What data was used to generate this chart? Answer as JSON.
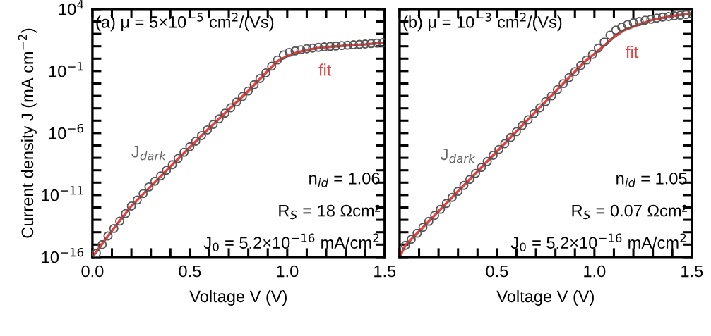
{
  "chart_data": [
    {
      "type": "line",
      "title": "(a) μ = 5×10$^{−5}$ cm$^{2}$/(Vs)",
      "xlabel": "Voltage V (V)",
      "ylabel": "Current density J (mA cm$^{−2}$)",
      "log": "y",
      "xlim": [
        0,
        1.5
      ],
      "ylim": [
        1e-16,
        10000
      ],
      "xticks": [
        {
          "value": 0,
          "label": "0.0"
        },
        {
          "value": 0.1,
          "label": null
        },
        {
          "value": 0.2,
          "label": null
        },
        {
          "value": 0.3,
          "label": null
        },
        {
          "value": 0.4,
          "label": null
        },
        {
          "value": 0.5,
          "label": "0.5"
        },
        {
          "value": 0.6,
          "label": null
        },
        {
          "value": 0.7,
          "label": null
        },
        {
          "value": 0.8,
          "label": null
        },
        {
          "value": 0.9,
          "label": null
        },
        {
          "value": 1.0,
          "label": "1.0"
        },
        {
          "value": 1.1,
          "label": null
        },
        {
          "value": 1.2,
          "label": null
        },
        {
          "value": 1.3,
          "label": null
        },
        {
          "value": 1.4,
          "label": null
        },
        {
          "value": 1.5,
          "label": "1.5"
        }
      ],
      "yticks": [
        {
          "value": 1e-16,
          "label": "10$^{−16}$"
        },
        {
          "value": 1e-15,
          "label": null
        },
        {
          "value": 1e-14,
          "label": null
        },
        {
          "value": 1e-13,
          "label": null
        },
        {
          "value": 1e-12,
          "label": null
        },
        {
          "value": 1e-11,
          "label": "10$^{−11}$"
        },
        {
          "value": 1e-10,
          "label": null
        },
        {
          "value": 1e-09,
          "label": null
        },
        {
          "value": 1e-08,
          "label": null
        },
        {
          "value": 1e-07,
          "label": null
        },
        {
          "value": 1e-06,
          "label": "10$^{−6}$"
        },
        {
          "value": 1e-05,
          "label": null
        },
        {
          "value": 0.0001,
          "label": null
        },
        {
          "value": 0.001,
          "label": null
        },
        {
          "value": 0.01,
          "label": null
        },
        {
          "value": 0.1,
          "label": "10$^{−1}$"
        },
        {
          "value": 1,
          "label": null
        },
        {
          "value": 10,
          "label": null
        },
        {
          "value": 100,
          "label": null
        },
        {
          "value": 1000,
          "label": null
        },
        {
          "value": 10000,
          "label": "10$^{4}$"
        }
      ],
      "series": [
        {
          "name": "J$_{dark}$",
          "type": "scatter",
          "marker": "circle",
          "color": "#555555",
          "x": [
            0.02,
            0.05,
            0.08,
            0.11,
            0.14,
            0.17,
            0.2,
            0.23,
            0.26,
            0.29,
            0.32,
            0.35,
            0.38,
            0.41,
            0.44,
            0.47,
            0.5,
            0.53,
            0.56,
            0.59,
            0.62,
            0.65,
            0.68,
            0.71,
            0.74,
            0.77,
            0.8,
            0.83,
            0.86,
            0.89,
            0.92,
            0.95,
            0.98,
            1.01,
            1.04,
            1.07,
            1.1,
            1.13,
            1.16,
            1.19,
            1.22,
            1.25,
            1.28,
            1.31,
            1.34,
            1.37,
            1.4,
            1.43,
            1.46,
            1.49
          ],
          "values": [
            2e-16,
            1e-15,
            5e-15,
            2e-14,
            7.9e-14,
            3.2e-13,
            1.3e-12,
            4e-12,
            1.3e-11,
            4.5e-11,
            1.3e-10,
            3.5e-10,
            1e-09,
            2.8e-09,
            8.9e-09,
            2.8e-08,
            7.9e-08,
            2.2e-07,
            6.3e-07,
            1.8e-06,
            5e-06,
            1.4e-05,
            4e-05,
            0.00011,
            0.00032,
            0.00089,
            0.0025,
            0.0079,
            0.025,
            0.071,
            0.25,
            0.79,
            2.0,
            3.2,
            4.2,
            5.2,
            6.3,
            7.2,
            8.1,
            8.9,
            9.8,
            10.5,
            11.5,
            12.3,
            13.2,
            14.1,
            15.1,
            16.6,
            18.2,
            19.5
          ]
        },
        {
          "name": "fit",
          "color": "#ee3b3b",
          "x": [
            0,
            0.1,
            0.2,
            0.4,
            0.6,
            0.8,
            0.9,
            0.95,
            1.0,
            1.05,
            1.1,
            1.15,
            1.2,
            1.3,
            1.4,
            1.5
          ],
          "values": [
            1e-16,
            1.3e-14,
            1.3e-12,
            2e-09,
            2.5e-06,
            0.0025,
            0.1,
            0.63,
            1.6,
            3.2,
            5.0,
            6.9,
            8.5,
            11.2,
            14.1,
            19.5
          ]
        }
      ],
      "annotations": [
        "n$_{id}$ = 1.06",
        "R$_{S}$ = 18 Ωcm²",
        "J$_{0}$ = 5.2×10$^{−16}$ mA/cm$^{2}$"
      ]
    },
    {
      "type": "line",
      "title": "(b) μ = 10$^{−3}$ cm$^{2}$/(Vs)",
      "xlabel": "Voltage V (V)",
      "log": "y",
      "tick_labels": "x",
      "xlim": [
        0,
        1.5
      ],
      "ylim": [
        1e-16,
        10000
      ],
      "xticks": [
        {
          "value": 0,
          "label": null
        },
        {
          "value": 0.1,
          "label": null
        },
        {
          "value": 0.2,
          "label": null
        },
        {
          "value": 0.3,
          "label": null
        },
        {
          "value": 0.4,
          "label": null
        },
        {
          "value": 0.5,
          "label": "0.5"
        },
        {
          "value": 0.6,
          "label": null
        },
        {
          "value": 0.7,
          "label": null
        },
        {
          "value": 0.8,
          "label": null
        },
        {
          "value": 0.9,
          "label": null
        },
        {
          "value": 1.0,
          "label": "1.0"
        },
        {
          "value": 1.1,
          "label": null
        },
        {
          "value": 1.2,
          "label": null
        },
        {
          "value": 1.3,
          "label": null
        },
        {
          "value": 1.4,
          "label": null
        },
        {
          "value": 1.5,
          "label": "1.5"
        }
      ],
      "yticks": [
        {
          "value": 1e-16,
          "label": null
        },
        {
          "value": 1e-15,
          "label": null
        },
        {
          "value": 1e-14,
          "label": null
        },
        {
          "value": 1e-13,
          "label": null
        },
        {
          "value": 1e-12,
          "label": null
        },
        {
          "value": 1e-11,
          "label": null
        },
        {
          "value": 1e-10,
          "label": null
        },
        {
          "value": 1e-09,
          "label": null
        },
        {
          "value": 1e-08,
          "label": null
        },
        {
          "value": 1e-07,
          "label": null
        },
        {
          "value": 1e-06,
          "label": null
        },
        {
          "value": 1e-05,
          "label": null
        },
        {
          "value": 0.0001,
          "label": null
        },
        {
          "value": 0.001,
          "label": null
        },
        {
          "value": 0.01,
          "label": null
        },
        {
          "value": 0.1,
          "label": null
        },
        {
          "value": 1,
          "label": null
        },
        {
          "value": 10,
          "label": null
        },
        {
          "value": 100,
          "label": null
        },
        {
          "value": 1000,
          "label": null
        },
        {
          "value": 10000,
          "label": null
        }
      ],
      "series": [
        {
          "name": "J$_{dark}$",
          "type": "scatter",
          "marker": "circle",
          "color": "#555555",
          "x": [
            0.03,
            0.06,
            0.09,
            0.12,
            0.15,
            0.18,
            0.21,
            0.24,
            0.27,
            0.3,
            0.33,
            0.36,
            0.39,
            0.42,
            0.45,
            0.48,
            0.51,
            0.54,
            0.57,
            0.6,
            0.63,
            0.66,
            0.69,
            0.72,
            0.75,
            0.78,
            0.81,
            0.84,
            0.87,
            0.9,
            0.93,
            0.96,
            0.99,
            1.02,
            1.05,
            1.08,
            1.11,
            1.14,
            1.17,
            1.2,
            1.23,
            1.26,
            1.29,
            1.32,
            1.35,
            1.38,
            1.41,
            1.44,
            1.47,
            1.5
          ],
          "values": [
            8.9e-16,
            2.7e-15,
            8.3e-15,
            2.5e-14,
            7.6e-14,
            2.3e-13,
            7.1e-13,
            2.1e-12,
            6.5e-12,
            2e-11,
            6e-11,
            1.8e-10,
            5.6e-10,
            1.7e-09,
            5.1e-09,
            1.6e-08,
            4.8e-08,
            1.4e-07,
            4.4e-07,
            1.3e-06,
            4.1e-06,
            1.2e-05,
            3.8e-05,
            0.00011,
            0.00035,
            0.001,
            0.0032,
            0.0098,
            0.03,
            0.091,
            0.28,
            0.79,
            2.2,
            7.1,
            22,
            79,
            200,
            350,
            560,
            790,
            1000,
            1260,
            1500,
            1860,
            2240,
            2510,
            2820,
            3160,
            3550,
            3980
          ]
        },
        {
          "name": "fit",
          "color": "#ee3b3b",
          "x": [
            0,
            0.03,
            0.12,
            0.3,
            0.5,
            0.7,
            0.9,
            0.95,
            1.0,
            1.05,
            1.1,
            1.15,
            1.2,
            1.3,
            1.4,
            1.5
          ],
          "values": [
            1e-16,
            8.9e-16,
            2.5e-14,
            2e-11,
            3.3e-08,
            5.5e-05,
            0.09,
            0.56,
            2.5,
            11,
            54,
            190,
            380,
            1400,
            2700,
            4600
          ]
        }
      ],
      "annotations": [
        "n$_{id}$ = 1.05",
        "R$_{S}$ = 0.07 Ωcm²",
        "J$_{0}$ = 5.2×10$^{−16}$ mA/cm$^{2}$"
      ]
    }
  ]
}
